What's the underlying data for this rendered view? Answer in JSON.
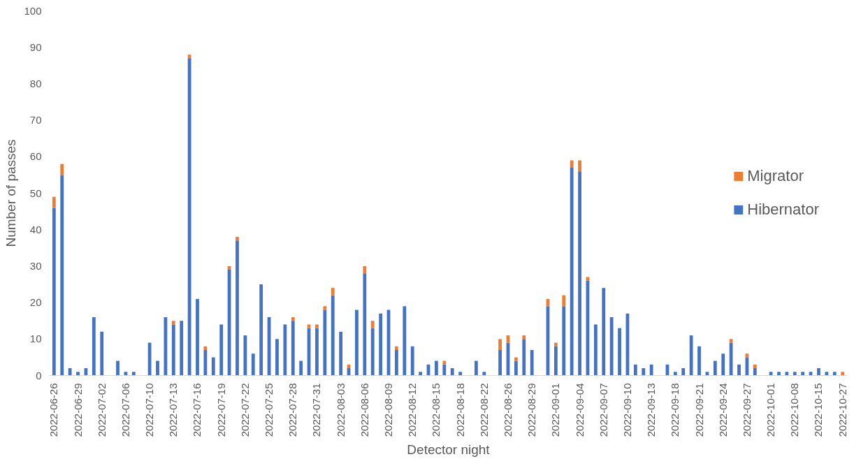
{
  "chart_data": {
    "type": "bar",
    "stacked": true,
    "xlabel": "Detector night",
    "ylabel": "Number of passes",
    "categories": [
      "2022-06-26",
      null,
      null,
      "2022-06-29",
      null,
      null,
      "2022-07-02",
      null,
      null,
      "2022-07-06",
      null,
      null,
      "2022-07-10",
      null,
      null,
      "2022-07-13",
      null,
      null,
      "2022-07-16",
      null,
      null,
      "2022-07-19",
      null,
      null,
      "2022-07-22",
      null,
      null,
      "2022-07-25",
      null,
      null,
      "2022-07-28",
      null,
      null,
      "2022-07-31",
      null,
      null,
      "2022-08-03",
      null,
      null,
      "2022-08-06",
      null,
      null,
      "2022-08-09",
      null,
      null,
      "2022-08-12",
      null,
      null,
      "2022-08-15",
      null,
      null,
      "2022-08-18",
      null,
      null,
      "2022-08-22",
      null,
      null,
      "2022-08-26",
      null,
      null,
      "2022-08-29",
      null,
      null,
      "2022-09-01",
      null,
      null,
      "2022-09-04",
      null,
      null,
      "2022-09-07",
      null,
      null,
      "2022-09-10",
      null,
      null,
      "2022-09-13",
      null,
      null,
      "2022-09-18",
      null,
      null,
      "2022-09-21",
      null,
      null,
      "2022-09-24",
      null,
      null,
      "2022-09-27",
      null,
      null,
      "2022-10-01",
      null,
      null,
      "2022-10-08",
      null,
      null,
      "2022-10-15",
      null,
      null,
      "2022-10-27"
    ],
    "series": [
      {
        "name": "Hibernator",
        "color": "#4472c4",
        "values": [
          46,
          55,
          2,
          1,
          2,
          16,
          12,
          0,
          4,
          1,
          1,
          0,
          9,
          4,
          16,
          14,
          15,
          87,
          21,
          7,
          5,
          14,
          29,
          37,
          11,
          6,
          25,
          16,
          10,
          14,
          15,
          4,
          13,
          13,
          18,
          22,
          12,
          2,
          18,
          28,
          13,
          17,
          18,
          7,
          19,
          8,
          1,
          3,
          4,
          3,
          2,
          1,
          0,
          4,
          1,
          0,
          7,
          9,
          4,
          10,
          7,
          0,
          19,
          8,
          19,
          57,
          56,
          26,
          14,
          24,
          16,
          13,
          17,
          3,
          2,
          3,
          0,
          3,
          1,
          2,
          11,
          8,
          1,
          4,
          6,
          9,
          3,
          5,
          2,
          0,
          1,
          1,
          1,
          1,
          1,
          1,
          2,
          1,
          1,
          0
        ]
      },
      {
        "name": "Migrator",
        "color": "#ed7d31",
        "values": [
          3,
          3,
          0,
          0,
          0,
          0,
          0,
          0,
          0,
          0,
          0,
          0,
          0,
          0,
          0,
          1,
          0,
          1,
          0,
          1,
          0,
          0,
          1,
          1,
          0,
          0,
          0,
          0,
          0,
          0,
          1,
          0,
          1,
          1,
          1,
          2,
          0,
          1,
          0,
          2,
          2,
          0,
          0,
          1,
          0,
          0,
          0,
          0,
          0,
          1,
          0,
          0,
          0,
          0,
          0,
          0,
          3,
          2,
          1,
          1,
          0,
          0,
          2,
          1,
          3,
          2,
          3,
          1,
          0,
          0,
          0,
          0,
          0,
          0,
          0,
          0,
          0,
          0,
          0,
          0,
          0,
          0,
          0,
          0,
          0,
          1,
          0,
          1,
          1,
          0,
          0,
          0,
          0,
          0,
          0,
          0,
          0,
          0,
          0,
          1
        ]
      }
    ],
    "ylim": [
      0,
      100
    ],
    "yticks": [
      0,
      10,
      20,
      30,
      40,
      50,
      60,
      70,
      80,
      90,
      100
    ],
    "legend": "right",
    "grid": false
  }
}
